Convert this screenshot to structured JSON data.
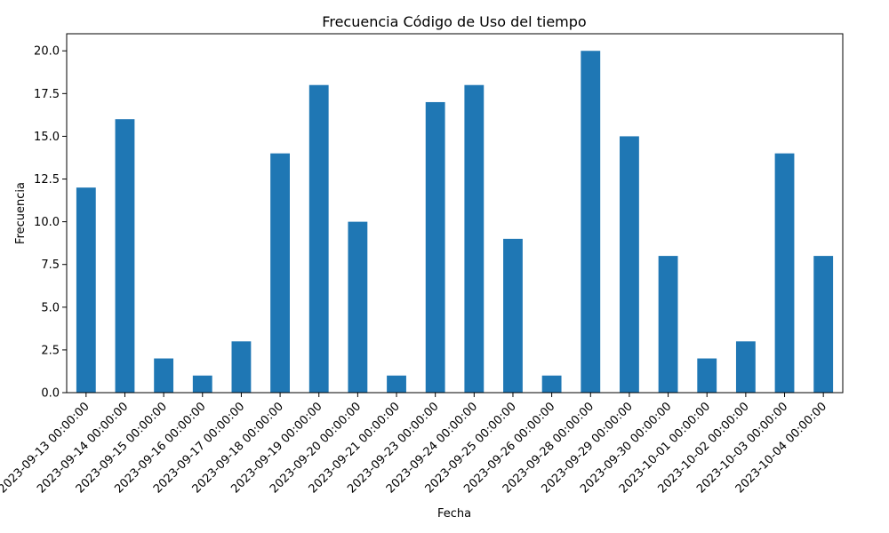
{
  "chart_data": {
    "type": "bar",
    "title": "Frecuencia Código de Uso del tiempo",
    "xlabel": "Fecha",
    "ylabel": "Frecuencia",
    "ylim": [
      0,
      21
    ],
    "yticks": [
      0,
      2.5,
      5,
      7.5,
      10,
      12.5,
      15,
      17.5,
      20
    ],
    "ytick_labels": [
      "0.0",
      "2.5",
      "5.0",
      "7.5",
      "10.0",
      "12.5",
      "15.0",
      "17.5",
      "20.0"
    ],
    "categories": [
      "2023-09-13 00:00:00",
      "2023-09-14 00:00:00",
      "2023-09-15 00:00:00",
      "2023-09-16 00:00:00",
      "2023-09-17 00:00:00",
      "2023-09-18 00:00:00",
      "2023-09-19 00:00:00",
      "2023-09-20 00:00:00",
      "2023-09-21 00:00:00",
      "2023-09-23 00:00:00",
      "2023-09-24 00:00:00",
      "2023-09-25 00:00:00",
      "2023-09-26 00:00:00",
      "2023-09-28 00:00:00",
      "2023-09-29 00:00:00",
      "2023-09-30 00:00:00",
      "2023-10-01 00:00:00",
      "2023-10-02 00:00:00",
      "2023-10-03 00:00:00",
      "2023-10-04 00:00:00"
    ],
    "values": [
      12,
      16,
      2,
      1,
      3,
      14,
      18,
      10,
      1,
      17,
      18,
      9,
      1,
      20,
      15,
      8,
      2,
      3,
      14,
      8
    ],
    "bar_color": "#1f77b4",
    "grid": false,
    "legend": "none"
  }
}
